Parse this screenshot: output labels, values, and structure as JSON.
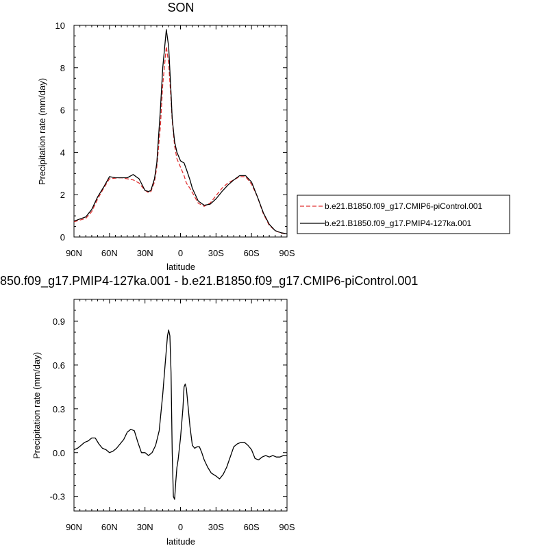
{
  "chart_data": [
    {
      "type": "line",
      "title": "SON",
      "xlabel": "latitude",
      "ylabel": "Precipitation rate (mm/day)",
      "xlim": [
        90,
        -90
      ],
      "ylim": [
        0,
        10
      ],
      "x_ticks": [
        90,
        60,
        30,
        0,
        -30,
        -60,
        -90
      ],
      "x_tick_labels": [
        "90N",
        "60N",
        "30N",
        "0",
        "30S",
        "60S",
        "90S"
      ],
      "y_ticks": [
        0,
        2,
        4,
        6,
        8,
        10
      ],
      "y_tick_labels": [
        "0",
        "2",
        "4",
        "6",
        "8",
        "10"
      ],
      "grid": false,
      "legend": "right",
      "series": [
        {
          "name": "b.e21.B1850.f09_g17.CMIP6-piControl.001",
          "color": "#e03030",
          "dash": "dashed",
          "x": [
            90,
            85,
            80,
            75,
            70,
            65,
            60,
            55,
            50,
            45,
            40,
            35,
            30,
            27,
            25,
            22,
            20,
            17,
            15,
            12,
            10,
            8,
            7,
            5,
            3,
            0,
            -3,
            -5,
            -8,
            -10,
            -15,
            -20,
            -25,
            -30,
            -35,
            -40,
            -45,
            -50,
            -55,
            -60,
            -65,
            -70,
            -75,
            -80,
            -85,
            -90
          ],
          "values": [
            0.72,
            0.8,
            0.88,
            1.2,
            1.8,
            2.3,
            2.75,
            2.78,
            2.8,
            2.75,
            2.7,
            2.55,
            2.2,
            2.1,
            2.15,
            2.6,
            3.3,
            5.2,
            7.2,
            9.0,
            8.2,
            6.5,
            5.5,
            4.3,
            3.7,
            3.3,
            2.9,
            2.55,
            2.3,
            2.1,
            1.6,
            1.45,
            1.6,
            1.95,
            2.3,
            2.55,
            2.7,
            2.85,
            2.85,
            2.5,
            1.9,
            1.1,
            0.55,
            0.3,
            0.18,
            0.15
          ]
        },
        {
          "name": "b.e21.B1850.f09_g17.PMIP4-127ka.001",
          "color": "#000000",
          "dash": "solid",
          "x": [
            90,
            85,
            80,
            75,
            70,
            65,
            60,
            55,
            50,
            45,
            40,
            35,
            30,
            27,
            25,
            22,
            20,
            17,
            15,
            12,
            10,
            8,
            7,
            5,
            3,
            0,
            -3,
            -5,
            -8,
            -10,
            -15,
            -20,
            -25,
            -30,
            -35,
            -40,
            -45,
            -50,
            -55,
            -60,
            -65,
            -70,
            -75,
            -80,
            -85,
            -90
          ],
          "values": [
            0.75,
            0.85,
            0.95,
            1.3,
            1.9,
            2.35,
            2.85,
            2.8,
            2.8,
            2.8,
            2.95,
            2.75,
            2.2,
            2.15,
            2.2,
            2.75,
            3.5,
            6.0,
            8.0,
            9.8,
            9.0,
            6.8,
            5.6,
            4.5,
            4.0,
            3.6,
            3.5,
            3.2,
            2.7,
            2.3,
            1.7,
            1.5,
            1.55,
            1.8,
            2.15,
            2.45,
            2.7,
            2.9,
            2.9,
            2.6,
            1.9,
            1.15,
            0.6,
            0.3,
            0.2,
            0.15
          ]
        }
      ]
    },
    {
      "type": "line",
      "title": "850.f09_g17.PMIP4-127ka.001 - b.e21.B1850.f09_g17.CMIP6-piControl.001",
      "xlabel": "latitude",
      "ylabel": "Precipitation rate (mm/day)",
      "xlim": [
        90,
        -90
      ],
      "ylim": [
        -0.4,
        1.05
      ],
      "x_ticks": [
        90,
        60,
        30,
        0,
        -30,
        -60,
        -90
      ],
      "x_tick_labels": [
        "90N",
        "60N",
        "30N",
        "0",
        "30S",
        "60S",
        "90S"
      ],
      "y_ticks": [
        -0.3,
        0,
        0.3,
        0.6,
        0.9
      ],
      "y_tick_labels": [
        "-0.3",
        "0.0",
        "0.3",
        "0.6",
        "0.9"
      ],
      "grid": false,
      "series": [
        {
          "color": "#000000",
          "dash": "solid",
          "x": [
            90,
            87,
            84,
            81,
            78,
            75,
            72,
            69,
            66,
            63,
            60,
            57,
            54,
            51,
            48,
            45,
            42,
            39,
            36,
            33,
            30,
            27,
            24,
            21,
            18,
            15,
            13,
            11,
            10,
            9,
            8,
            7,
            6,
            5,
            4,
            3,
            2,
            0,
            -2,
            -3,
            -4,
            -5,
            -6,
            -8,
            -10,
            -12,
            -14,
            -16,
            -18,
            -20,
            -23,
            -26,
            -30,
            -33,
            -36,
            -39,
            -42,
            -45,
            -48,
            -51,
            -54,
            -57,
            -60,
            -63,
            -66,
            -69,
            -72,
            -75,
            -78,
            -81,
            -84,
            -87,
            -90
          ],
          "values": [
            0.02,
            0.03,
            0.05,
            0.07,
            0.08,
            0.1,
            0.1,
            0.06,
            0.03,
            0.02,
            0.0,
            0.01,
            0.03,
            0.06,
            0.09,
            0.14,
            0.16,
            0.15,
            0.07,
            0.0,
            0.0,
            -0.02,
            0.0,
            0.05,
            0.15,
            0.4,
            0.6,
            0.8,
            0.84,
            0.8,
            0.55,
            0.0,
            -0.3,
            -0.32,
            -0.2,
            -0.1,
            -0.05,
            0.1,
            0.3,
            0.45,
            0.47,
            0.44,
            0.35,
            0.18,
            0.05,
            0.03,
            0.04,
            0.04,
            0.0,
            -0.05,
            -0.1,
            -0.14,
            -0.16,
            -0.18,
            -0.15,
            -0.1,
            -0.03,
            0.04,
            0.06,
            0.07,
            0.07,
            0.05,
            0.02,
            -0.04,
            -0.05,
            -0.03,
            -0.02,
            -0.03,
            -0.02,
            -0.03,
            -0.03,
            -0.02,
            -0.02
          ]
        }
      ]
    }
  ]
}
